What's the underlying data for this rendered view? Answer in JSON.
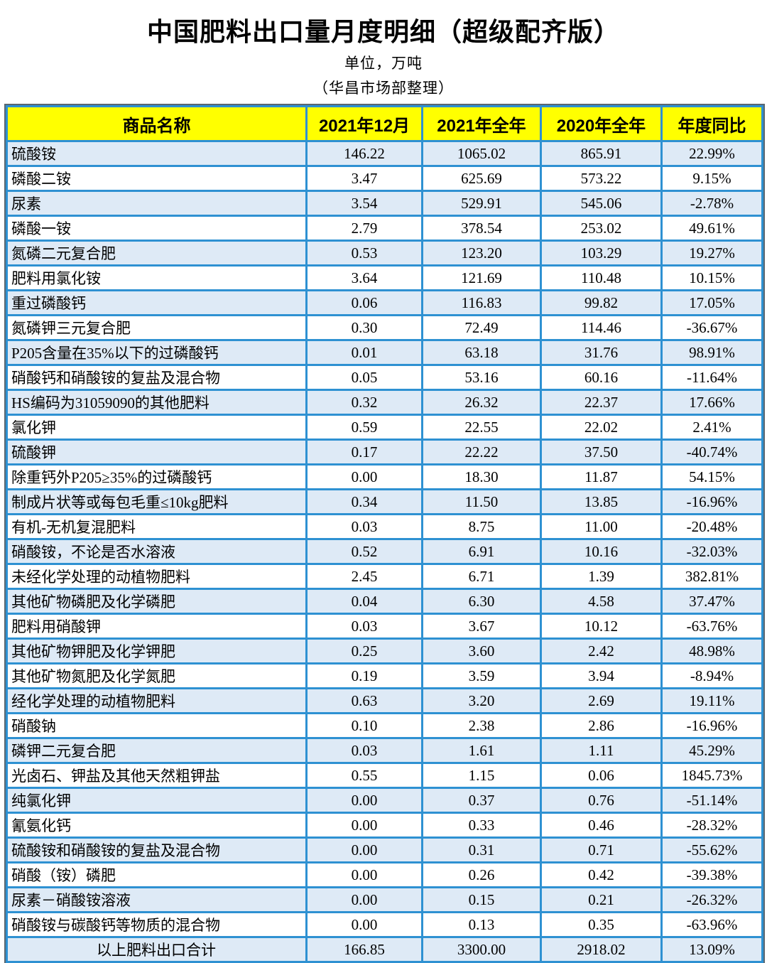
{
  "title": "中国肥料出口量月度明细（超级配齐版）",
  "subtitle": "单位，万吨",
  "note": "（华昌市场部整理）",
  "colors": {
    "grid_blue": "#2E91D2",
    "header_yellow": "#FFFF00",
    "row_alt_blue": "#DEEAF6",
    "row_white": "#FFFFFF",
    "text_black": "#000000"
  },
  "table": {
    "columns": [
      "商品名称",
      "2021年12月",
      "2021年全年",
      "2020年全年",
      "年度同比"
    ],
    "rows": [
      [
        "硫酸铵",
        "146.22",
        "1065.02",
        "865.91",
        "22.99%"
      ],
      [
        "磷酸二铵",
        "3.47",
        "625.69",
        "573.22",
        "9.15%"
      ],
      [
        "尿素",
        "3.54",
        "529.91",
        "545.06",
        "-2.78%"
      ],
      [
        "磷酸一铵",
        "2.79",
        "378.54",
        "253.02",
        "49.61%"
      ],
      [
        "氮磷二元复合肥",
        "0.53",
        "123.20",
        "103.29",
        "19.27%"
      ],
      [
        "肥料用氯化铵",
        "3.64",
        "121.69",
        "110.48",
        "10.15%"
      ],
      [
        "重过磷酸钙",
        "0.06",
        "116.83",
        "99.82",
        "17.05%"
      ],
      [
        "氮磷钾三元复合肥",
        "0.30",
        "72.49",
        "114.46",
        "-36.67%"
      ],
      [
        "P205含量在35%以下的过磷酸钙",
        "0.01",
        "63.18",
        "31.76",
        "98.91%"
      ],
      [
        "硝酸钙和硝酸铵的复盐及混合物",
        "0.05",
        "53.16",
        "60.16",
        "-11.64%"
      ],
      [
        "HS编码为31059090的其他肥料",
        "0.32",
        "26.32",
        "22.37",
        "17.66%"
      ],
      [
        "氯化钾",
        "0.59",
        "22.55",
        "22.02",
        "2.41%"
      ],
      [
        "硫酸钾",
        "0.17",
        "22.22",
        "37.50",
        "-40.74%"
      ],
      [
        "除重钙外P205≥35%的过磷酸钙",
        "0.00",
        "18.30",
        "11.87",
        "54.15%"
      ],
      [
        "制成片状等或每包毛重≤10kg肥料",
        "0.34",
        "11.50",
        "13.85",
        "-16.96%"
      ],
      [
        "有机-无机复混肥料",
        "0.03",
        "8.75",
        "11.00",
        "-20.48%"
      ],
      [
        "硝酸铵，不论是否水溶液",
        "0.52",
        "6.91",
        "10.16",
        "-32.03%"
      ],
      [
        "未经化学处理的动植物肥料",
        "2.45",
        "6.71",
        "1.39",
        "382.81%"
      ],
      [
        "其他矿物磷肥及化学磷肥",
        "0.04",
        "6.30",
        "4.58",
        "37.47%"
      ],
      [
        "肥料用硝酸钾",
        "0.03",
        "3.67",
        "10.12",
        "-63.76%"
      ],
      [
        "其他矿物钾肥及化学钾肥",
        "0.25",
        "3.60",
        "2.42",
        "48.98%"
      ],
      [
        "其他矿物氮肥及化学氮肥",
        "0.19",
        "3.59",
        "3.94",
        "-8.94%"
      ],
      [
        "经化学处理的动植物肥料",
        "0.63",
        "3.20",
        "2.69",
        "19.11%"
      ],
      [
        "硝酸钠",
        "0.10",
        "2.38",
        "2.86",
        "-16.96%"
      ],
      [
        "磷钾二元复合肥",
        "0.03",
        "1.61",
        "1.11",
        "45.29%"
      ],
      [
        "光卤石、钾盐及其他天然粗钾盐",
        "0.55",
        "1.15",
        "0.06",
        "1845.73%"
      ],
      [
        "纯氯化钾",
        "0.00",
        "0.37",
        "0.76",
        "-51.14%"
      ],
      [
        "氰氨化钙",
        "0.00",
        "0.33",
        "0.46",
        "-28.32%"
      ],
      [
        "硫酸铵和硝酸铵的复盐及混合物",
        "0.00",
        "0.31",
        "0.71",
        "-55.62%"
      ],
      [
        "硝酸（铵）磷肥",
        "0.00",
        "0.26",
        "0.42",
        "-39.38%"
      ],
      [
        "尿素－硝酸铵溶液",
        "0.00",
        "0.15",
        "0.21",
        "-26.32%"
      ],
      [
        "硝酸铵与碳酸钙等物质的混合物",
        "0.00",
        "0.13",
        "0.35",
        "-63.96%"
      ]
    ],
    "total_row": [
      "以上肥料出口合计",
      "166.85",
      "3300.00",
      "2918.02",
      "13.09%"
    ]
  }
}
